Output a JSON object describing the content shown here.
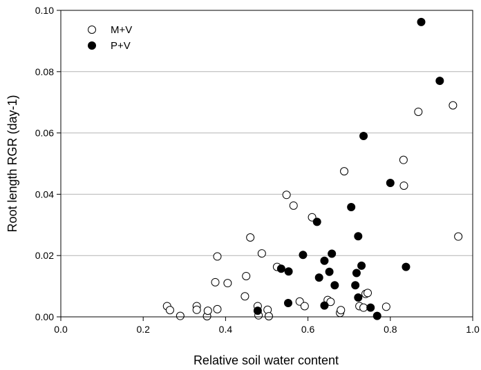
{
  "chart_data": {
    "type": "scatter",
    "title": "",
    "xlabel": "Relative soil water content",
    "ylabel": "Root length RGR (day-1)",
    "xlim": [
      0.0,
      1.0
    ],
    "ylim": [
      0.0,
      0.1
    ],
    "x_ticks": [
      "0.0",
      "0.2",
      "0.4",
      "0.6",
      "0.8",
      "1.0"
    ],
    "y_ticks": [
      "0.00",
      "0.02",
      "0.04",
      "0.06",
      "0.08",
      "0.10"
    ],
    "grid": "horizontal",
    "legend": "top-left",
    "series": [
      {
        "name": "M+V",
        "marker": "open-circle",
        "color": "#000000",
        "points": [
          [
            0.258,
            0.0035
          ],
          [
            0.265,
            0.0022
          ],
          [
            0.29,
            0.0003
          ],
          [
            0.33,
            0.0035
          ],
          [
            0.33,
            0.0023
          ],
          [
            0.355,
            0.0002
          ],
          [
            0.357,
            0.002
          ],
          [
            0.375,
            0.0113
          ],
          [
            0.38,
            0.0197
          ],
          [
            0.38,
            0.0025
          ],
          [
            0.405,
            0.011
          ],
          [
            0.447,
            0.0067
          ],
          [
            0.45,
            0.0133
          ],
          [
            0.46,
            0.0259
          ],
          [
            0.478,
            0.0035
          ],
          [
            0.48,
            0.0005
          ],
          [
            0.488,
            0.0207
          ],
          [
            0.502,
            0.0023
          ],
          [
            0.505,
            0.0002
          ],
          [
            0.525,
            0.0163
          ],
          [
            0.548,
            0.0398
          ],
          [
            0.565,
            0.0363
          ],
          [
            0.58,
            0.005
          ],
          [
            0.592,
            0.0035
          ],
          [
            0.61,
            0.0325
          ],
          [
            0.648,
            0.0055
          ],
          [
            0.655,
            0.0049
          ],
          [
            0.678,
            0.0013
          ],
          [
            0.68,
            0.0022
          ],
          [
            0.688,
            0.0475
          ],
          [
            0.725,
            0.0035
          ],
          [
            0.735,
            0.003
          ],
          [
            0.74,
            0.0075
          ],
          [
            0.745,
            0.0078
          ],
          [
            0.79,
            0.0033
          ],
          [
            0.832,
            0.0512
          ],
          [
            0.833,
            0.0428
          ],
          [
            0.868,
            0.0669
          ],
          [
            0.952,
            0.069
          ],
          [
            0.965,
            0.0262
          ]
        ]
      },
      {
        "name": "P+V",
        "marker": "filled-circle",
        "color": "#000000",
        "points": [
          [
            0.478,
            0.002
          ],
          [
            0.535,
            0.0157
          ],
          [
            0.552,
            0.0045
          ],
          [
            0.553,
            0.0148
          ],
          [
            0.588,
            0.0202
          ],
          [
            0.622,
            0.031
          ],
          [
            0.627,
            0.0128
          ],
          [
            0.64,
            0.0037
          ],
          [
            0.64,
            0.0183
          ],
          [
            0.652,
            0.0147
          ],
          [
            0.658,
            0.0206
          ],
          [
            0.665,
            0.0103
          ],
          [
            0.705,
            0.0358
          ],
          [
            0.715,
            0.0103
          ],
          [
            0.718,
            0.0143
          ],
          [
            0.722,
            0.0263
          ],
          [
            0.722,
            0.0063
          ],
          [
            0.73,
            0.0167
          ],
          [
            0.735,
            0.059
          ],
          [
            0.752,
            0.003
          ],
          [
            0.768,
            0.0003
          ],
          [
            0.8,
            0.0437
          ],
          [
            0.838,
            0.0163
          ],
          [
            0.875,
            0.0962
          ],
          [
            0.92,
            0.077
          ]
        ]
      }
    ]
  }
}
